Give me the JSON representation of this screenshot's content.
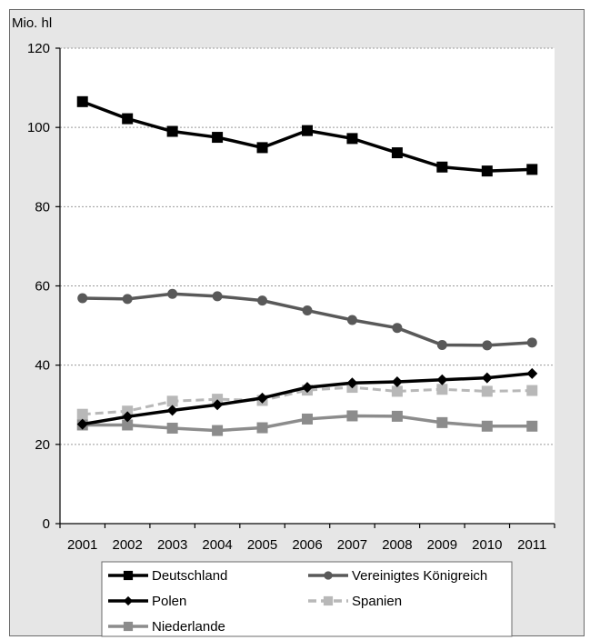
{
  "chart_data": {
    "type": "line",
    "ylabel": "Mio. hl",
    "ylim": [
      0,
      120
    ],
    "yticks": [
      0,
      20,
      40,
      60,
      80,
      100,
      120
    ],
    "grid": "horizontal dotted",
    "legend_position": "bottom",
    "categories": [
      "2001",
      "2002",
      "2003",
      "2004",
      "2005",
      "2006",
      "2007",
      "2008",
      "2009",
      "2010",
      "2011"
    ],
    "series": [
      {
        "name": "Deutschland",
        "color": "#000000",
        "marker": "square",
        "dash": false,
        "values": [
          106.5,
          102.2,
          99.0,
          97.5,
          94.9,
          99.2,
          97.2,
          93.6,
          90.0,
          89.0,
          89.4
        ]
      },
      {
        "name": "Vereinigtes Königreich",
        "color": "#595959",
        "marker": "circle",
        "dash": false,
        "values": [
          56.9,
          56.7,
          58.0,
          57.4,
          56.3,
          53.8,
          51.4,
          49.4,
          45.1,
          45.0,
          45.7
        ]
      },
      {
        "name": "Polen",
        "color": "#000000",
        "marker": "diamond",
        "dash": false,
        "values": [
          25.1,
          27.0,
          28.6,
          30.0,
          31.7,
          34.4,
          35.5,
          35.8,
          36.3,
          36.8,
          37.9
        ]
      },
      {
        "name": "Spanien",
        "color": "#b8b8b8",
        "marker": "square",
        "dash": true,
        "values": [
          27.6,
          28.4,
          30.9,
          31.4,
          31.1,
          33.7,
          34.4,
          33.4,
          33.9,
          33.4,
          33.6
        ]
      },
      {
        "name": "Niederlande",
        "color": "#8c8c8c",
        "marker": "square",
        "dash": false,
        "values": [
          24.9,
          24.9,
          24.1,
          23.5,
          24.2,
          26.4,
          27.2,
          27.1,
          25.5,
          24.6,
          24.6
        ]
      }
    ]
  }
}
